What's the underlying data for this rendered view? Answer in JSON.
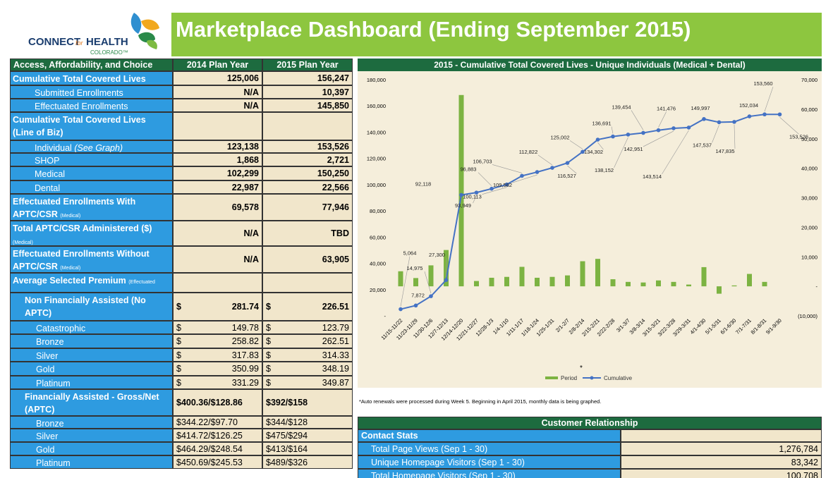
{
  "header": {
    "title": "Marketplace Dashboard (Ending September 2015)",
    "logo": {
      "connect": "CONNECT",
      "for": "for",
      "health": "HEALTH",
      "state": "COLORADO™"
    }
  },
  "table": {
    "columns": [
      "Access, Affordability, and Choice",
      "2014 Plan Year",
      "2015 Plan Year"
    ],
    "rows": [
      {
        "label": "Cumulative Total Covered Lives",
        "cells": [
          "125,006",
          "156,247"
        ]
      },
      {
        "label": "Submitted Enrollments",
        "cells": [
          "N/A",
          "10,397"
        ]
      },
      {
        "label": "Effectuated Enrollments",
        "cells": [
          "N/A",
          "145,850"
        ]
      },
      {
        "label": "Cumulative Total Covered Lives (Line of Biz)"
      },
      {
        "label": "Individual",
        "emphasis": "(See Graph)",
        "cells": [
          "123,138",
          "153,526"
        ]
      },
      {
        "label": "SHOP",
        "cells": [
          "1,868",
          "2,721"
        ]
      },
      {
        "label": "Medical",
        "cells": [
          "102,299",
          "150,250"
        ]
      },
      {
        "label": "Dental",
        "cells": [
          "22,987",
          "22,566"
        ]
      },
      {
        "label": "Effectuated Enrollments With APTC/CSR",
        "note": "(Medical)",
        "cells": [
          "69,578",
          "77,946"
        ]
      },
      {
        "label": "Total APTC/CSR Administered ($)",
        "note": "(Medical)",
        "cells": [
          "N/A",
          "TBD"
        ]
      },
      {
        "label": "Effectuated Enrollments Without APTC/CSR",
        "note": "(Medical)",
        "cells": [
          "N/A",
          "63,905"
        ]
      },
      {
        "label": "Average Selected Premium",
        "note": "(Effectuated Enrollments)"
      },
      {
        "label": "Non Financially Assisted (No APTC)",
        "cells": [
          [
            "$",
            "281.74"
          ],
          [
            "$",
            "226.51"
          ]
        ]
      },
      {
        "label": "Catastrophic",
        "cells": [
          [
            "$",
            "149.78"
          ],
          [
            "$",
            "123.79"
          ]
        ]
      },
      {
        "label": "Bronze",
        "cells": [
          [
            "$",
            "258.82"
          ],
          [
            "$",
            "262.51"
          ]
        ]
      },
      {
        "label": "Silver",
        "cells": [
          [
            "$",
            "317.83"
          ],
          [
            "$",
            "314.33"
          ]
        ]
      },
      {
        "label": "Gold",
        "cells": [
          [
            "$",
            "350.99"
          ],
          [
            "$",
            "348.19"
          ]
        ]
      },
      {
        "label": "Platinum",
        "cells": [
          [
            "$",
            "331.29"
          ],
          [
            "$",
            "349.87"
          ]
        ]
      },
      {
        "label": "Financially Assisted - Gross/Net (APTC)",
        "cells": [
          "$400.36/$128.86",
          "$392/$158"
        ]
      },
      {
        "label": "Bronze",
        "cells": [
          "$344.22/$97.70",
          "$344/$128"
        ]
      },
      {
        "label": "Silver",
        "cells": [
          "$414.72/$126.25",
          "$475/$294"
        ]
      },
      {
        "label": "Gold",
        "cells": [
          "$464.29/$248.54",
          "$413/$164"
        ]
      },
      {
        "label": "Platinum",
        "cells": [
          "$450.69/$245.53",
          "$489/$326"
        ]
      }
    ]
  },
  "chart_data": {
    "type": "combo",
    "title": "2015 - Cumulative Total Covered Lives - Unique Individuals (Medical + Dental)",
    "categories": [
      "11/15-11/22",
      "11/23-11/29",
      "11/30-12/6",
      "12/7-12/13",
      "12/14-12/20",
      "12/21-12/27",
      "12/28-1/3",
      "1/4-1/10",
      "1/11-1/17",
      "1/18-1/24",
      "1/25-1/31",
      "2/1-2/7",
      "2/8-2/14",
      "2/15-2/21",
      "2/22-2/28",
      "3/1-3/7",
      "3/8-3/14",
      "3/15-3/21",
      "3/22-3/28",
      "3/29-3/31",
      "4/1-4/30",
      "5/1-5/31",
      "6/1-6/30",
      "7/1-7/31",
      "8/1-8/31",
      "9/1-9/30"
    ],
    "series": [
      {
        "name": "Period",
        "type": "bar",
        "axis": "y2",
        "color": "#7cb342",
        "values": [
          5100,
          2800,
          7100,
          12300,
          64800,
          1800,
          2900,
          3200,
          6600,
          2900,
          3200,
          3700,
          8500,
          9300,
          2400,
          1500,
          1300,
          2000,
          1500,
          600,
          6500,
          -2500,
          300,
          4200,
          1500,
          0
        ]
      },
      {
        "name": "Cumulative",
        "type": "line",
        "color": "#4472c4",
        "values": [
          5064,
          7872,
          14975,
          27300,
          92118,
          93949,
          96883,
          100113,
          106703,
          109582,
          112822,
          116527,
          125002,
          134302,
          136691,
          138152,
          139454,
          141476,
          142951,
          143514,
          149997,
          147537,
          147835,
          152034,
          153560,
          153526
        ],
        "value_labels": [
          "5,064",
          "7,872",
          "14,975",
          "27,300",
          "92,118",
          "93,949",
          "96,883",
          "100,113",
          "106,703",
          "109,582",
          "112,822",
          "116,527",
          "125,002",
          "134,302",
          "136,691",
          "138,152",
          "139,454",
          "141,476",
          "142,951",
          "143,514",
          "149,997",
          "147,537",
          "147,835",
          "152,034",
          "153,560",
          "153,526"
        ]
      }
    ],
    "ylim": [
      0,
      180000
    ],
    "yticks": [
      {
        "value": 0,
        "label": "-"
      },
      {
        "value": 20000,
        "label": "20,000"
      },
      {
        "value": 40000,
        "label": "40,000"
      },
      {
        "value": 60000,
        "label": "60,000"
      },
      {
        "value": 80000,
        "label": "80,000"
      },
      {
        "value": 100000,
        "label": "100,000"
      },
      {
        "value": 120000,
        "label": "120,000"
      },
      {
        "value": 140000,
        "label": "140,000"
      },
      {
        "value": 160000,
        "label": "160,000"
      },
      {
        "value": 180000,
        "label": "180,000"
      }
    ],
    "y2lim": [
      -10000,
      70000
    ],
    "y2ticks": [
      {
        "value": -10000,
        "label": "(10,000)"
      },
      {
        "value": 0,
        "label": "-"
      },
      {
        "value": 10000,
        "label": "10,000"
      },
      {
        "value": 20000,
        "label": "20,000"
      },
      {
        "value": 30000,
        "label": "30,000"
      },
      {
        "value": 40000,
        "label": "40,000"
      },
      {
        "value": 50000,
        "label": "50,000"
      },
      {
        "value": 60000,
        "label": "60,000"
      },
      {
        "value": 70000,
        "label": "70,000"
      }
    ],
    "annotation": "*",
    "legend": "bottom",
    "footnote": "*Auto renewals were processed during Week 5.  Beginning in April 2015, monthly data is being graphed."
  },
  "customer": {
    "title": "Customer Relationship",
    "section": "Contact Stats",
    "rows": [
      {
        "label": "Total Page Views (Sep 1 - 30)",
        "value": "1,276,784"
      },
      {
        "label": "Unique Homepage Visitors (Sep 1 - 30)",
        "value": "83,342"
      },
      {
        "label": "Total Homepage Visitors (Sep 1 - 30)",
        "value": "100,708"
      }
    ]
  }
}
